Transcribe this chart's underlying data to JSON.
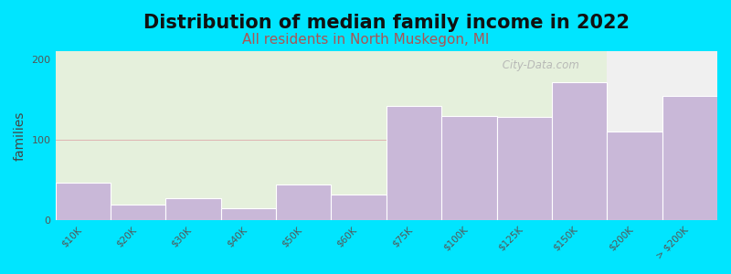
{
  "title": "Distribution of median family income in 2022",
  "subtitle": "All residents in North Muskegon, MI",
  "ylabel": "families",
  "categories": [
    "$10K",
    "$20K",
    "$30K",
    "$40K",
    "$50K",
    "$60K",
    "$75K",
    "$100K",
    "$125K",
    "$150K",
    "$200K",
    "> $200K"
  ],
  "values": [
    47,
    20,
    27,
    15,
    45,
    32,
    142,
    130,
    128,
    172,
    110,
    155
  ],
  "bar_color": "#c9b8d8",
  "bar_edgecolor": "#ffffff",
  "background_color": "#00e5ff",
  "plot_bg_color_left": "#e5f0dc",
  "plot_bg_color_right": "#f0f0f0",
  "green_split_index": 10,
  "ylim": [
    0,
    210
  ],
  "yticks": [
    0,
    100,
    200
  ],
  "watermark": " City-Data.com",
  "title_fontsize": 15,
  "subtitle_fontsize": 11,
  "ylabel_fontsize": 10
}
